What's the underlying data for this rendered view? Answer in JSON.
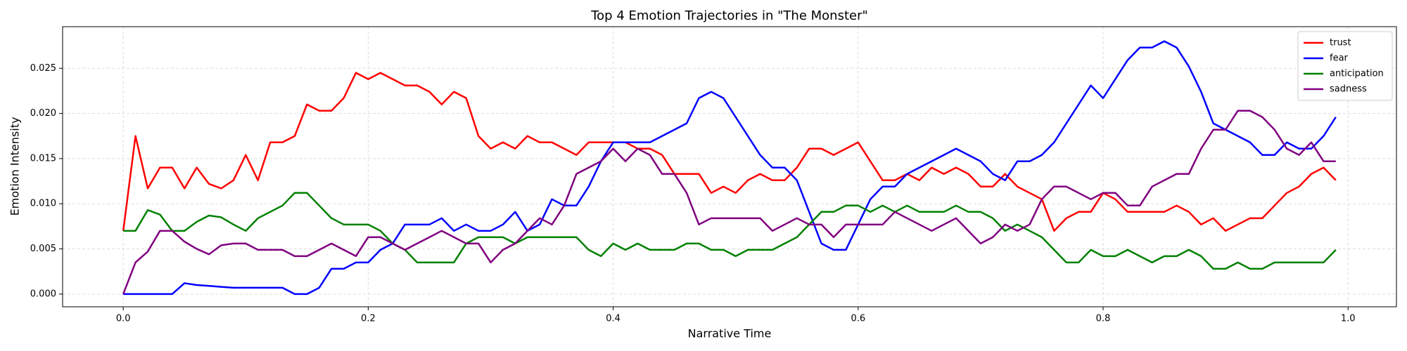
{
  "chart_data": {
    "type": "line",
    "title": "Top 4 Emotion Trajectories in \"The Monster\"",
    "xlabel": "Narrative Time",
    "ylabel": "Emotion Intensity",
    "x": [
      0,
      0.01,
      0.02,
      0.03,
      0.04,
      0.05,
      0.06,
      0.07,
      0.08,
      0.09,
      0.1,
      0.11,
      0.12,
      0.13,
      0.14,
      0.15,
      0.16,
      0.17,
      0.18,
      0.19,
      0.2,
      0.21,
      0.22,
      0.23,
      0.24,
      0.25,
      0.26,
      0.27,
      0.28,
      0.29,
      0.3,
      0.31,
      0.32,
      0.33,
      0.34,
      0.35,
      0.36,
      0.37,
      0.38,
      0.39,
      0.4,
      0.41,
      0.42,
      0.43,
      0.44,
      0.45,
      0.46,
      0.47,
      0.48,
      0.49,
      0.5,
      0.51,
      0.52,
      0.53,
      0.54,
      0.55,
      0.56,
      0.57,
      0.58,
      0.59,
      0.6,
      0.61,
      0.62,
      0.63,
      0.64,
      0.65,
      0.66,
      0.67,
      0.68,
      0.69,
      0.7,
      0.71,
      0.72,
      0.73,
      0.74,
      0.75,
      0.76,
      0.77,
      0.78,
      0.79,
      0.8,
      0.81,
      0.82,
      0.83,
      0.84,
      0.85,
      0.86,
      0.87,
      0.88,
      0.89,
      0.9,
      0.91,
      0.92,
      0.93,
      0.94,
      0.95,
      0.96,
      0.97,
      0.98,
      0.99
    ],
    "series": [
      {
        "name": "trust",
        "color": "#ff0000",
        "values": [
          0.007,
          0.0175,
          0.0117,
          0.014,
          0.014,
          0.0117,
          0.014,
          0.0122,
          0.0117,
          0.0126,
          0.0154,
          0.0126,
          0.0168,
          0.0168,
          0.0175,
          0.021,
          0.0203,
          0.0203,
          0.0217,
          0.0245,
          0.0238,
          0.0245,
          0.0238,
          0.0231,
          0.0231,
          0.0224,
          0.021,
          0.0224,
          0.0217,
          0.0175,
          0.0161,
          0.0168,
          0.0161,
          0.0175,
          0.0168,
          0.0168,
          0.0161,
          0.0154,
          0.0168,
          0.0168,
          0.0168,
          0.0168,
          0.0161,
          0.0161,
          0.0154,
          0.0133,
          0.0133,
          0.0133,
          0.0112,
          0.0119,
          0.0112,
          0.0126,
          0.0133,
          0.0126,
          0.0126,
          0.014,
          0.0161,
          0.0161,
          0.0154,
          0.0161,
          0.0168,
          0.0147,
          0.0126,
          0.0126,
          0.0133,
          0.0126,
          0.014,
          0.0133,
          0.014,
          0.0133,
          0.0119,
          0.0119,
          0.0133,
          0.0119,
          0.0112,
          0.0105,
          0.007,
          0.0084,
          0.0091,
          0.0091,
          0.0112,
          0.0105,
          0.0091,
          0.0091,
          0.0091,
          0.0091,
          0.0098,
          0.0091,
          0.0077,
          0.0084,
          0.007,
          0.0077,
          0.0084,
          0.0084,
          0.0098,
          0.0112,
          0.0119,
          0.0133,
          0.014,
          0.0126
        ]
      },
      {
        "name": "fear",
        "color": "#0000ff",
        "values": [
          0,
          0,
          0,
          0,
          0,
          0.0012,
          0.001,
          0.0009,
          0.0008,
          0.0007,
          0.0007,
          0.0007,
          0.0007,
          0.0007,
          0,
          0,
          0.0007,
          0.0028,
          0.0028,
          0.0035,
          0.0035,
          0.0049,
          0.0056,
          0.0077,
          0.0077,
          0.0077,
          0.0084,
          0.007,
          0.0077,
          0.007,
          0.007,
          0.0077,
          0.0091,
          0.007,
          0.0077,
          0.0105,
          0.0098,
          0.0098,
          0.0119,
          0.0147,
          0.0168,
          0.0168,
          0.0168,
          0.0168,
          0.0175,
          0.0182,
          0.0189,
          0.0217,
          0.0224,
          0.0217,
          0.0196,
          0.0175,
          0.0154,
          0.014,
          0.014,
          0.0126,
          0.0091,
          0.0056,
          0.0049,
          0.0049,
          0.0077,
          0.0105,
          0.0119,
          0.0119,
          0.0133,
          0.014,
          0.0147,
          0.0154,
          0.0161,
          0.0154,
          0.0147,
          0.0133,
          0.0126,
          0.0147,
          0.0147,
          0.0154,
          0.0168,
          0.0189,
          0.021,
          0.0231,
          0.0217,
          0.0238,
          0.0259,
          0.0273,
          0.0273,
          0.028,
          0.0273,
          0.0252,
          0.0224,
          0.0189,
          0.0182,
          0.0175,
          0.0168,
          0.0154,
          0.0154,
          0.0168,
          0.0161,
          0.0161,
          0.0175,
          0.0196
        ]
      },
      {
        "name": "anticipation",
        "color": "#008000",
        "values": [
          0.007,
          0.007,
          0.0093,
          0.0088,
          0.007,
          0.007,
          0.008,
          0.0087,
          0.0085,
          0.0077,
          0.007,
          0.0084,
          0.0091,
          0.0098,
          0.0112,
          0.0112,
          0.0098,
          0.0084,
          0.0077,
          0.0077,
          0.0077,
          0.007,
          0.0056,
          0.0049,
          0.0035,
          0.0035,
          0.0035,
          0.0035,
          0.0056,
          0.0063,
          0.0063,
          0.0063,
          0.0056,
          0.0063,
          0.0063,
          0.0063,
          0.0063,
          0.0063,
          0.0049,
          0.0042,
          0.0056,
          0.0049,
          0.0056,
          0.0049,
          0.0049,
          0.0049,
          0.0056,
          0.0056,
          0.0049,
          0.0049,
          0.0042,
          0.0049,
          0.0049,
          0.0049,
          0.0056,
          0.0063,
          0.0077,
          0.0091,
          0.0091,
          0.0098,
          0.0098,
          0.0091,
          0.0098,
          0.0091,
          0.0098,
          0.0091,
          0.0091,
          0.0091,
          0.0098,
          0.0091,
          0.0091,
          0.0084,
          0.007,
          0.0077,
          0.007,
          0.0063,
          0.0049,
          0.0035,
          0.0035,
          0.0049,
          0.0042,
          0.0042,
          0.0049,
          0.0042,
          0.0035,
          0.0042,
          0.0042,
          0.0049,
          0.0042,
          0.0028,
          0.0028,
          0.0035,
          0.0028,
          0.0028,
          0.0035,
          0.0035,
          0.0035,
          0.0035,
          0.0035,
          0.0049
        ]
      },
      {
        "name": "sadness",
        "color": "#800080",
        "values": [
          0,
          0.0035,
          0.0047,
          0.007,
          0.007,
          0.0058,
          0.005,
          0.0044,
          0.0054,
          0.0056,
          0.0056,
          0.0049,
          0.0049,
          0.0049,
          0.0042,
          0.0042,
          0.0049,
          0.0056,
          0.0049,
          0.0042,
          0.0063,
          0.0063,
          0.0056,
          0.0049,
          0.0056,
          0.0063,
          0.007,
          0.0063,
          0.0056,
          0.0056,
          0.0035,
          0.0049,
          0.0056,
          0.007,
          0.0084,
          0.0077,
          0.0098,
          0.0133,
          0.014,
          0.0147,
          0.0161,
          0.0147,
          0.0161,
          0.0154,
          0.0133,
          0.0133,
          0.0112,
          0.0077,
          0.0084,
          0.0084,
          0.0084,
          0.0084,
          0.0084,
          0.007,
          0.0077,
          0.0084,
          0.0077,
          0.0077,
          0.0063,
          0.0077,
          0.0077,
          0.0077,
          0.0077,
          0.0091,
          0.0084,
          0.0077,
          0.007,
          0.0077,
          0.0084,
          0.007,
          0.0056,
          0.0063,
          0.0077,
          0.007,
          0.0077,
          0.0105,
          0.0119,
          0.0119,
          0.0112,
          0.0105,
          0.0112,
          0.0112,
          0.0098,
          0.0098,
          0.0119,
          0.0126,
          0.0133,
          0.0133,
          0.0161,
          0.0182,
          0.0182,
          0.0203,
          0.0203,
          0.0196,
          0.0182,
          0.0161,
          0.0154,
          0.0168,
          0.0147,
          0.0147
        ]
      }
    ],
    "xlim": [
      -0.0495,
      1.0395
    ],
    "ylim": [
      -0.00141,
      0.02961
    ],
    "xticks": [
      {
        "value": 0,
        "label": "0.0"
      },
      0.2,
      0.4,
      0.6,
      0.8,
      {
        "value": 1,
        "label": "1.0"
      }
    ],
    "yticks": [
      {
        "value": 0,
        "label": "0.000"
      },
      {
        "value": 0.005,
        "label": "0.005"
      },
      {
        "value": 0.01,
        "label": "0.010"
      },
      {
        "value": 0.015,
        "label": "0.015"
      },
      {
        "value": 0.02,
        "label": "0.020"
      },
      {
        "value": 0.025,
        "label": "0.025"
      }
    ],
    "grid": true,
    "legend": "upper right"
  }
}
